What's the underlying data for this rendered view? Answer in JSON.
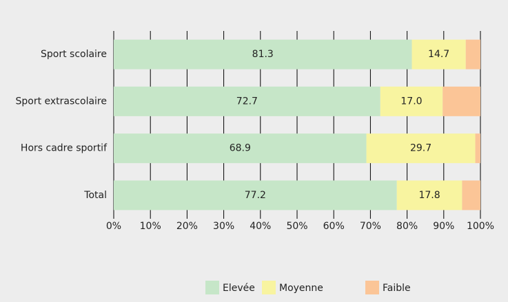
{
  "chart_data": {
    "type": "stacked_barh",
    "categories": [
      "Sport scolaire",
      "Sport extrascolaire",
      "Hors cadre sportif",
      "Total"
    ],
    "series": [
      {
        "name": "Elevée",
        "color": "#c6e6c8",
        "values": [
          81.3,
          72.7,
          68.9,
          77.2
        ]
      },
      {
        "name": "Moyenne",
        "color": "#f8f4a0",
        "values": [
          14.7,
          17.0,
          29.7,
          17.8
        ],
        "value_labels": [
          "14.7",
          "17.0",
          "29.7",
          "17.8"
        ]
      },
      {
        "name": "Faible",
        "color": "#fbc597",
        "values": [
          4.0,
          10.3,
          1.4,
          5.0
        ]
      }
    ],
    "xlim": [
      0,
      100
    ],
    "xticks": [
      {
        "value": 0,
        "label": "0%"
      },
      {
        "value": 10,
        "label": "10%"
      },
      {
        "value": 20,
        "label": "20%"
      },
      {
        "value": 30,
        "label": "30%"
      },
      {
        "value": 40,
        "label": "40%"
      },
      {
        "value": 50,
        "label": "50%"
      },
      {
        "value": 60,
        "label": "60%"
      },
      {
        "value": 70,
        "label": "70%"
      },
      {
        "value": 80,
        "label": "80%"
      },
      {
        "value": 90,
        "label": "90%"
      },
      {
        "value": 100,
        "label": "100%"
      }
    ],
    "grid": true,
    "legend": "bottom"
  }
}
